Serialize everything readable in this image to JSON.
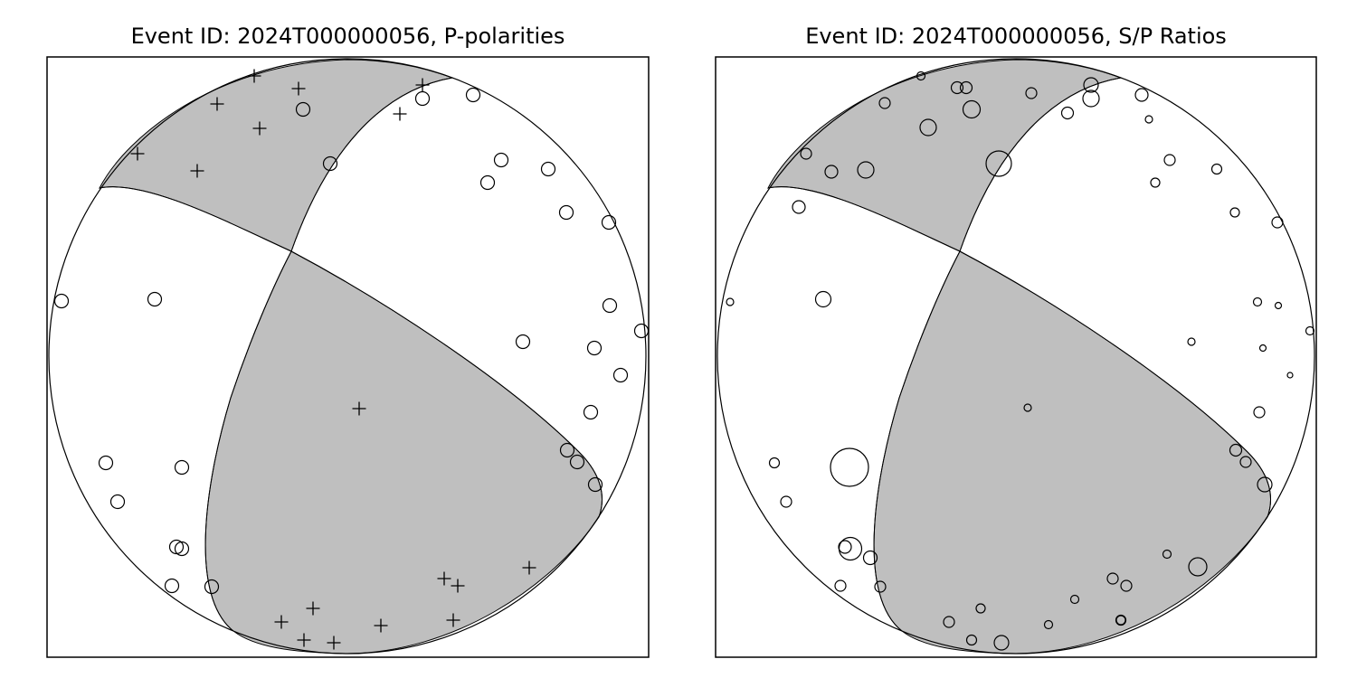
{
  "titles": {
    "left": "Event ID: 2024T000000056, P-polarities",
    "right": "Event ID: 2024T000000056, S/P Ratios"
  },
  "colors": {
    "compressional_fill": "#bfbfbf",
    "dilatational_fill": "#ffffff",
    "line": "#000000"
  },
  "symbols": {
    "compression": "plus",
    "dilatation": "circle"
  }
}
